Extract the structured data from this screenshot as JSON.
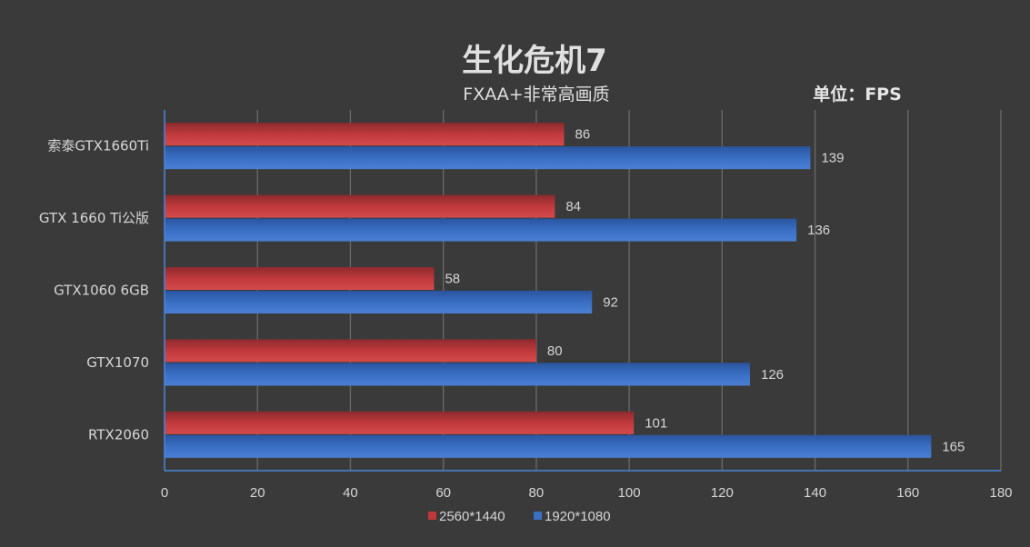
{
  "chart_data": {
    "type": "bar",
    "orientation": "horizontal",
    "title": "生化危机7",
    "subtitle": "FXAA+非常高画质",
    "unit_label": "单位：FPS",
    "categories": [
      "索泰GTX1660Ti",
      "GTX 1660 Ti公版",
      "GTX1060 6GB",
      "GTX1070",
      "RTX2060"
    ],
    "series": [
      {
        "name": "2560*1440",
        "color": "#c0383b",
        "values": [
          86,
          84,
          58,
          80,
          101
        ]
      },
      {
        "name": "1920*1080",
        "color": "#3a6fc4",
        "values": [
          139,
          136,
          92,
          126,
          165
        ]
      }
    ],
    "xlim": [
      0,
      180
    ],
    "xticks": [
      0,
      20,
      40,
      60,
      80,
      100,
      120,
      140,
      160,
      180
    ],
    "grid": true,
    "legend_position": "bottom",
    "data_labels": true
  }
}
